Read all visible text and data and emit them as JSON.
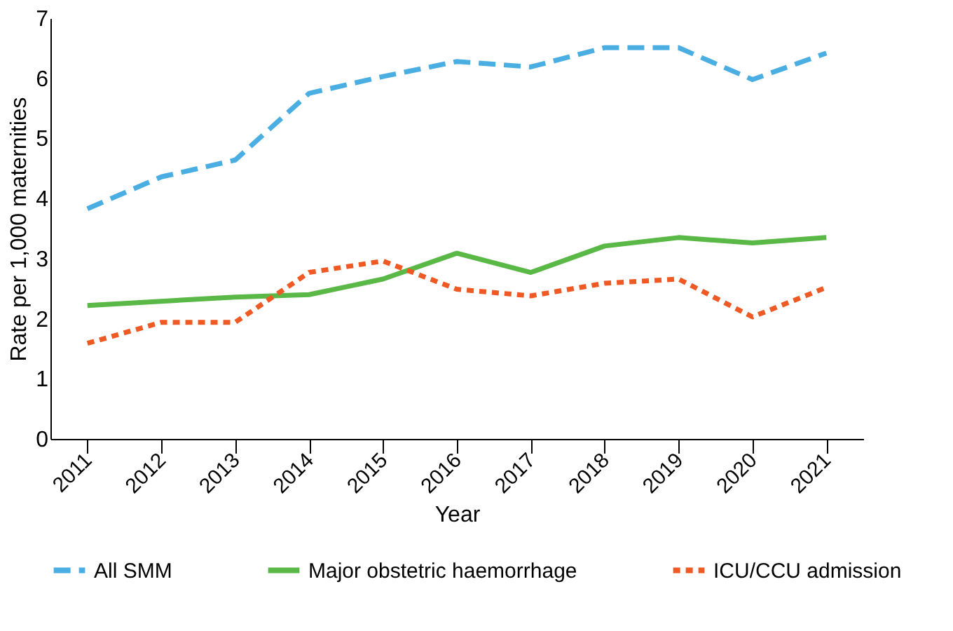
{
  "chart_data": {
    "type": "line",
    "xlabel": "Year",
    "ylabel": "Rate per 1,000 maternities",
    "categories": [
      "2011",
      "2012",
      "2013",
      "2014",
      "2015",
      "2016",
      "2017",
      "2018",
      "2019",
      "2020",
      "2021"
    ],
    "series": [
      {
        "name": "All SMM",
        "color": "#4aaee3",
        "line_style": "dashed",
        "values": [
          3.83,
          4.36,
          4.64,
          5.75,
          6.03,
          6.28,
          6.19,
          6.51,
          6.51,
          5.98,
          6.42
        ]
      },
      {
        "name": "Major obstetric haemorrhage",
        "color": "#5ab946",
        "line_style": "solid",
        "values": [
          2.22,
          2.29,
          2.36,
          2.4,
          2.66,
          3.09,
          2.77,
          3.21,
          3.35,
          3.26,
          3.35
        ]
      },
      {
        "name": "ICU/CCU admission",
        "color": "#ef5a24",
        "line_style": "dotted",
        "values": [
          1.59,
          1.94,
          1.94,
          2.77,
          2.96,
          2.49,
          2.38,
          2.59,
          2.66,
          2.03,
          2.52
        ]
      }
    ],
    "ylim": [
      0,
      7
    ],
    "yticks": [
      0,
      1,
      2,
      3,
      4,
      5,
      6,
      7
    ],
    "grid": false,
    "legend": "bottom",
    "marker": "none"
  }
}
